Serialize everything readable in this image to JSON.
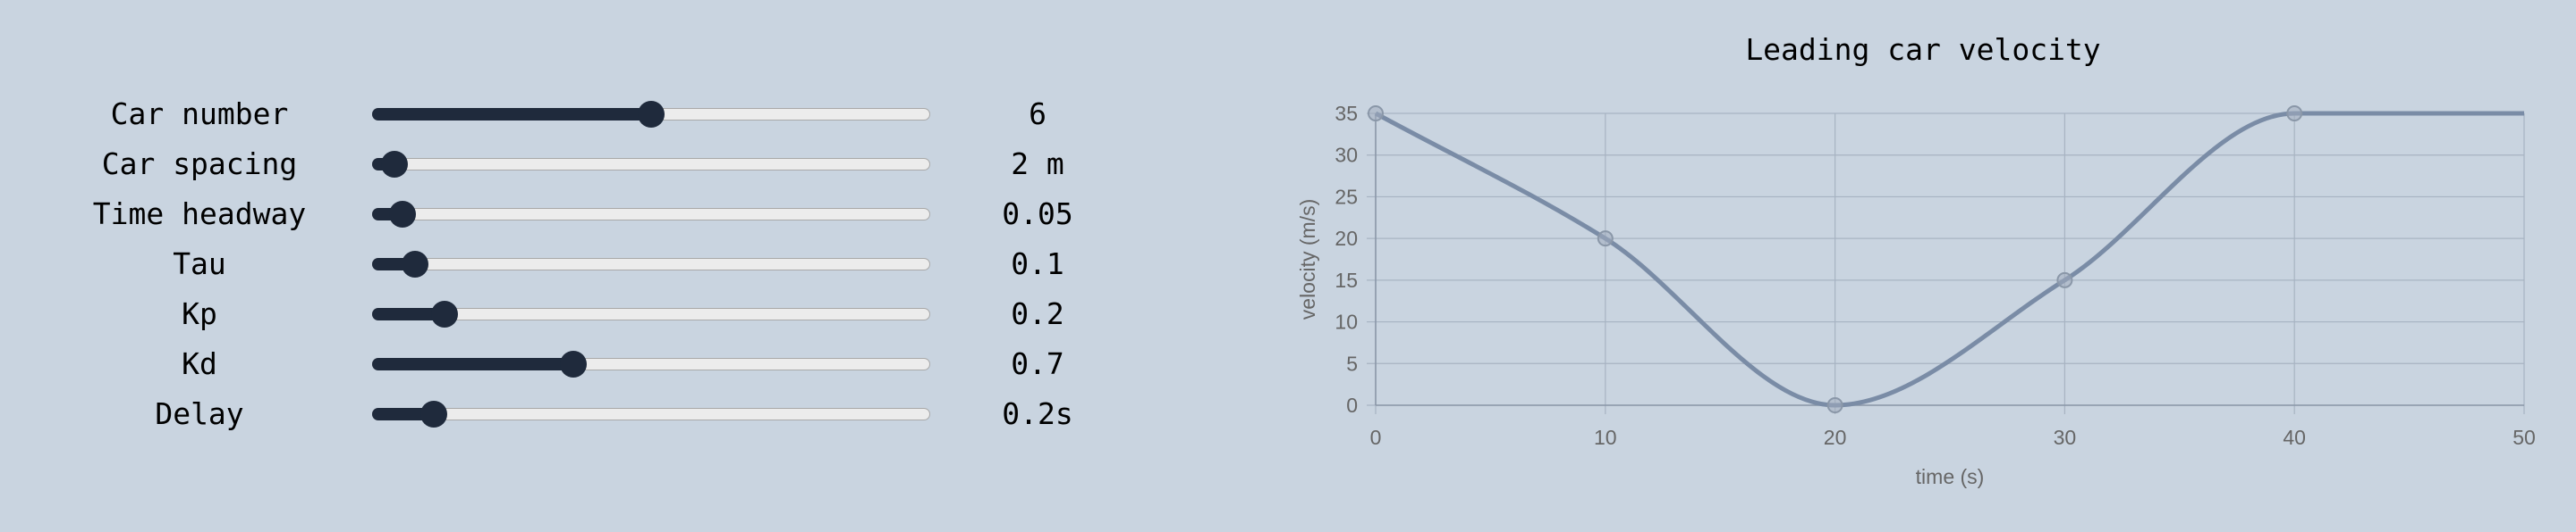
{
  "controls": [
    {
      "label": "Car number",
      "value": "6",
      "fraction": 0.5
    },
    {
      "label": "Car spacing",
      "value": "2 m",
      "fraction": 0.04
    },
    {
      "label": "Time headway",
      "value": "0.05",
      "fraction": 0.055
    },
    {
      "label": "Tau",
      "value": "0.1",
      "fraction": 0.077
    },
    {
      "label": "Kp",
      "value": "0.2",
      "fraction": 0.13
    },
    {
      "label": "Kd",
      "value": "0.7",
      "fraction": 0.36
    },
    {
      "label": "Delay",
      "value": "0.2s",
      "fraction": 0.11
    }
  ],
  "colors": {
    "background": "#c9d4e0",
    "slider_fill": "#1f2a3c",
    "slider_track": "#ececec",
    "line": "#7a8ca6",
    "grid": "#a7b3c2"
  },
  "chart_data": {
    "type": "line",
    "title": "Leading car velocity",
    "xlabel": "time (s)",
    "ylabel": "velocity (m/s)",
    "xlim": [
      0,
      50
    ],
    "ylim": [
      0,
      35
    ],
    "x_ticks": [
      0,
      10,
      20,
      30,
      40,
      50
    ],
    "y_ticks": [
      0,
      5,
      10,
      15,
      20,
      25,
      30,
      35
    ],
    "grid": true,
    "series": [
      {
        "x": [
          0,
          10,
          20,
          30,
          40,
          50
        ],
        "y": [
          35,
          20,
          0,
          15,
          35,
          35
        ]
      }
    ],
    "point_markers": [
      {
        "x": 0,
        "y": 35
      },
      {
        "x": 10,
        "y": 20
      },
      {
        "x": 20,
        "y": 0
      },
      {
        "x": 30,
        "y": 15
      },
      {
        "x": 40,
        "y": 35
      }
    ]
  }
}
